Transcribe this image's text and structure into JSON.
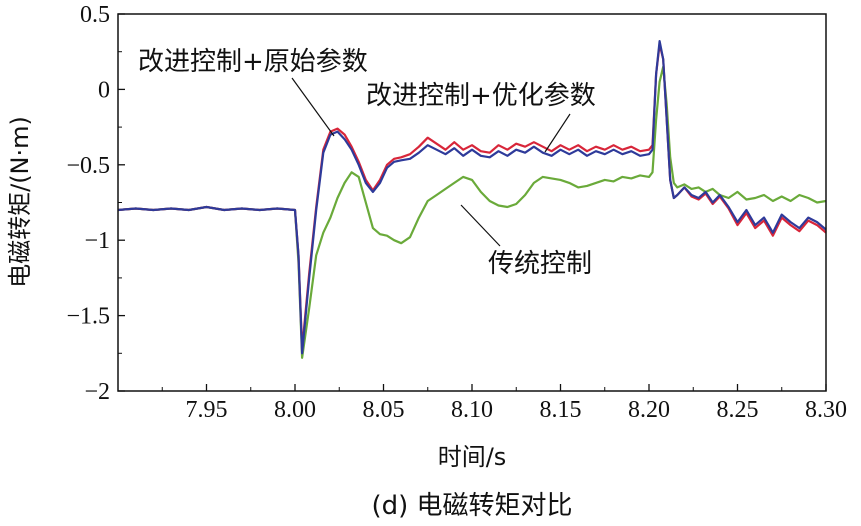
{
  "chart_data": {
    "type": "line",
    "caption": "(d) 电磁转矩对比",
    "xlabel": "时间/s",
    "ylabel": "电磁转矩/(N·m)",
    "xlim": [
      7.9,
      8.3
    ],
    "ylim": [
      -2,
      0.5
    ],
    "xticks": [
      7.95,
      8.0,
      8.05,
      8.1,
      8.15,
      8.2,
      8.25,
      8.3
    ],
    "xtick_labels": [
      "7.95",
      "8.00",
      "8.05",
      "8.10",
      "8.15",
      "8.20",
      "8.25",
      "8.30"
    ],
    "yticks": [
      0.5,
      0,
      -0.5,
      -1,
      -1.5,
      -2
    ],
    "ytick_labels": [
      "0.5",
      "0",
      "−0.5",
      "−1",
      "−1.5",
      "−2"
    ],
    "grid": false,
    "series": [
      {
        "name": "改进控制+原始参数",
        "color": "#2e3a9a",
        "x": [
          7.9,
          7.91,
          7.92,
          7.93,
          7.94,
          7.95,
          7.96,
          7.97,
          7.98,
          7.99,
          8.0,
          8.002,
          8.004,
          8.008,
          8.012,
          8.016,
          8.02,
          8.024,
          8.028,
          8.032,
          8.036,
          8.04,
          8.044,
          8.048,
          8.052,
          8.056,
          8.06,
          8.065,
          8.07,
          8.075,
          8.08,
          8.085,
          8.09,
          8.095,
          8.1,
          8.105,
          8.11,
          8.115,
          8.12,
          8.125,
          8.13,
          8.135,
          8.14,
          8.145,
          8.15,
          8.155,
          8.16,
          8.165,
          8.17,
          8.175,
          8.18,
          8.185,
          8.19,
          8.195,
          8.2,
          8.202,
          8.204,
          8.206,
          8.208,
          8.21,
          8.212,
          8.214,
          8.216,
          8.22,
          8.224,
          8.228,
          8.232,
          8.236,
          8.24,
          8.245,
          8.25,
          8.255,
          8.26,
          8.265,
          8.27,
          8.275,
          8.28,
          8.285,
          8.29,
          8.295,
          8.3
        ],
        "y": [
          -0.8,
          -0.79,
          -0.8,
          -0.79,
          -0.8,
          -0.78,
          -0.8,
          -0.79,
          -0.8,
          -0.79,
          -0.8,
          -1.1,
          -1.75,
          -1.25,
          -0.8,
          -0.42,
          -0.3,
          -0.28,
          -0.33,
          -0.4,
          -0.5,
          -0.62,
          -0.68,
          -0.62,
          -0.52,
          -0.48,
          -0.47,
          -0.46,
          -0.42,
          -0.37,
          -0.4,
          -0.43,
          -0.39,
          -0.44,
          -0.4,
          -0.44,
          -0.45,
          -0.41,
          -0.44,
          -0.4,
          -0.42,
          -0.38,
          -0.42,
          -0.44,
          -0.4,
          -0.43,
          -0.4,
          -0.44,
          -0.41,
          -0.43,
          -0.4,
          -0.43,
          -0.41,
          -0.44,
          -0.43,
          -0.4,
          0.1,
          0.32,
          0.2,
          -0.2,
          -0.6,
          -0.72,
          -0.7,
          -0.65,
          -0.7,
          -0.72,
          -0.68,
          -0.75,
          -0.7,
          -0.78,
          -0.88,
          -0.8,
          -0.9,
          -0.85,
          -0.95,
          -0.83,
          -0.88,
          -0.92,
          -0.85,
          -0.88,
          -0.93
        ]
      },
      {
        "name": "改进控制+优化参数",
        "color": "#d8263a",
        "x": [
          7.9,
          7.91,
          7.92,
          7.93,
          7.94,
          7.95,
          7.96,
          7.97,
          7.98,
          7.99,
          8.0,
          8.002,
          8.004,
          8.008,
          8.012,
          8.016,
          8.02,
          8.024,
          8.028,
          8.032,
          8.036,
          8.04,
          8.044,
          8.048,
          8.052,
          8.056,
          8.06,
          8.065,
          8.07,
          8.075,
          8.08,
          8.085,
          8.09,
          8.095,
          8.1,
          8.105,
          8.11,
          8.115,
          8.12,
          8.125,
          8.13,
          8.135,
          8.14,
          8.145,
          8.15,
          8.155,
          8.16,
          8.165,
          8.17,
          8.175,
          8.18,
          8.185,
          8.19,
          8.195,
          8.2,
          8.202,
          8.204,
          8.206,
          8.208,
          8.21,
          8.212,
          8.214,
          8.216,
          8.22,
          8.224,
          8.228,
          8.232,
          8.236,
          8.24,
          8.245,
          8.25,
          8.255,
          8.26,
          8.265,
          8.27,
          8.275,
          8.28,
          8.285,
          8.29,
          8.295,
          8.3
        ],
        "y": [
          -0.8,
          -0.79,
          -0.8,
          -0.79,
          -0.8,
          -0.78,
          -0.8,
          -0.79,
          -0.8,
          -0.79,
          -0.8,
          -1.1,
          -1.72,
          -1.22,
          -0.78,
          -0.4,
          -0.28,
          -0.26,
          -0.3,
          -0.38,
          -0.48,
          -0.6,
          -0.67,
          -0.6,
          -0.5,
          -0.46,
          -0.45,
          -0.43,
          -0.38,
          -0.32,
          -0.36,
          -0.4,
          -0.35,
          -0.4,
          -0.37,
          -0.41,
          -0.42,
          -0.37,
          -0.4,
          -0.36,
          -0.38,
          -0.35,
          -0.38,
          -0.41,
          -0.37,
          -0.4,
          -0.37,
          -0.41,
          -0.38,
          -0.4,
          -0.37,
          -0.4,
          -0.38,
          -0.41,
          -0.4,
          -0.37,
          0.1,
          0.3,
          0.2,
          -0.2,
          -0.6,
          -0.72,
          -0.7,
          -0.65,
          -0.71,
          -0.73,
          -0.69,
          -0.76,
          -0.71,
          -0.79,
          -0.9,
          -0.82,
          -0.92,
          -0.87,
          -0.97,
          -0.85,
          -0.9,
          -0.94,
          -0.87,
          -0.9,
          -0.95
        ]
      },
      {
        "name": "传统控制",
        "color": "#6aaa3a",
        "x": [
          7.9,
          7.91,
          7.92,
          7.93,
          7.94,
          7.95,
          7.96,
          7.97,
          7.98,
          7.99,
          8.0,
          8.002,
          8.004,
          8.008,
          8.012,
          8.016,
          8.02,
          8.024,
          8.028,
          8.032,
          8.036,
          8.04,
          8.044,
          8.048,
          8.052,
          8.056,
          8.06,
          8.065,
          8.07,
          8.075,
          8.08,
          8.085,
          8.09,
          8.095,
          8.1,
          8.105,
          8.11,
          8.115,
          8.12,
          8.125,
          8.13,
          8.135,
          8.14,
          8.145,
          8.15,
          8.155,
          8.16,
          8.165,
          8.17,
          8.175,
          8.18,
          8.185,
          8.19,
          8.195,
          8.2,
          8.202,
          8.204,
          8.206,
          8.208,
          8.21,
          8.212,
          8.214,
          8.216,
          8.22,
          8.224,
          8.228,
          8.232,
          8.236,
          8.24,
          8.245,
          8.25,
          8.255,
          8.26,
          8.265,
          8.27,
          8.275,
          8.28,
          8.285,
          8.29,
          8.295,
          8.3
        ],
        "y": [
          -0.8,
          -0.79,
          -0.8,
          -0.79,
          -0.8,
          -0.78,
          -0.8,
          -0.79,
          -0.8,
          -0.79,
          -0.8,
          -1.15,
          -1.78,
          -1.45,
          -1.1,
          -0.95,
          -0.85,
          -0.72,
          -0.62,
          -0.55,
          -0.58,
          -0.75,
          -0.92,
          -0.96,
          -0.97,
          -1.0,
          -1.02,
          -0.98,
          -0.85,
          -0.74,
          -0.7,
          -0.66,
          -0.62,
          -0.58,
          -0.6,
          -0.68,
          -0.74,
          -0.77,
          -0.78,
          -0.76,
          -0.7,
          -0.62,
          -0.58,
          -0.59,
          -0.6,
          -0.62,
          -0.65,
          -0.64,
          -0.62,
          -0.6,
          -0.61,
          -0.58,
          -0.59,
          -0.57,
          -0.58,
          -0.55,
          -0.2,
          0.05,
          0.15,
          -0.1,
          -0.45,
          -0.62,
          -0.65,
          -0.63,
          -0.66,
          -0.65,
          -0.68,
          -0.66,
          -0.7,
          -0.72,
          -0.68,
          -0.73,
          -0.72,
          -0.7,
          -0.74,
          -0.71,
          -0.74,
          -0.7,
          -0.72,
          -0.75,
          -0.74
        ]
      }
    ],
    "annotations": [
      {
        "label": "改进控制+原始参数"
      },
      {
        "label": "改进控制+优化参数"
      },
      {
        "label": "传统控制"
      }
    ]
  }
}
